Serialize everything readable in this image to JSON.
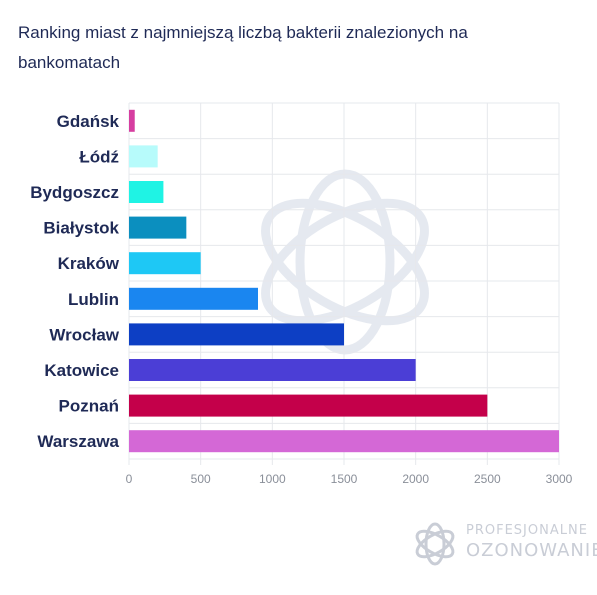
{
  "chart_data": {
    "type": "bar",
    "orientation": "horizontal",
    "title": "Ranking miast z najmniejszą liczbą bakterii znalezionych na bankomatach",
    "categories": [
      "Gdańsk",
      "Łódź",
      "Bydgoszcz",
      "Białystok",
      "Kraków",
      "Lublin",
      "Wrocław",
      "Katowice",
      "Poznań",
      "Warszawa"
    ],
    "values": [
      40,
      200,
      240,
      400,
      500,
      900,
      1500,
      2000,
      2500,
      3000
    ],
    "colors": [
      "#d63ea0",
      "#b7fbfb",
      "#1ff3e4",
      "#0b8fbf",
      "#1ec8f5",
      "#1a86f0",
      "#0d3fc4",
      "#4b3ed6",
      "#c4004a",
      "#d468d6"
    ],
    "xlim": [
      0,
      3000
    ],
    "xticks": [
      0,
      500,
      1000,
      1500,
      2000,
      2500,
      3000
    ],
    "grid": true,
    "legend": "none"
  },
  "branding": {
    "line1": "PROFESJONALNE",
    "line2": "OZONOWANIE"
  }
}
